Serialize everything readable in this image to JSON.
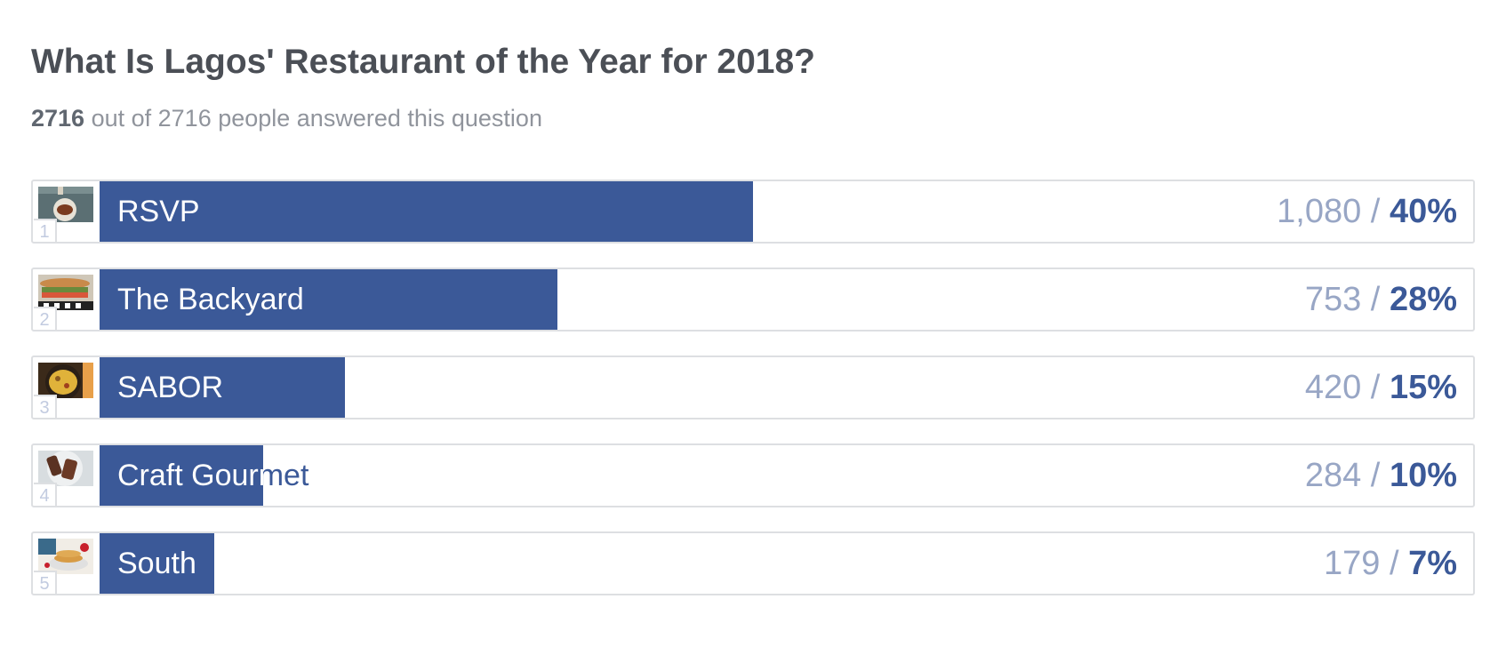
{
  "poll": {
    "title": "What Is Lagos' Restaurant of the Year for 2018?",
    "answered_count": "2716",
    "answered_text": "out of 2716 people answered this question"
  },
  "chart_data": {
    "type": "bar",
    "orientation": "horizontal",
    "title": "What Is Lagos' Restaurant of the Year for 2018?",
    "categories": [
      "RSVP",
      "The Backyard",
      "SABOR",
      "Craft Gourmet",
      "South"
    ],
    "values": [
      1080,
      753,
      420,
      284,
      179
    ],
    "percents": [
      40,
      28,
      15,
      10,
      7
    ],
    "value_labels": [
      "1,080",
      "753",
      "420",
      "284",
      "179"
    ],
    "percent_labels": [
      "40%",
      "28%",
      "15%",
      "10%",
      "7%"
    ],
    "ranks": [
      "1",
      "2",
      "3",
      "4",
      "5"
    ],
    "thumbnails": [
      "food-photo-grill",
      "food-photo-sandwich",
      "food-photo-omelette",
      "food-photo-ribs",
      "food-photo-pancakes"
    ],
    "bar_color": "#3b5998"
  }
}
